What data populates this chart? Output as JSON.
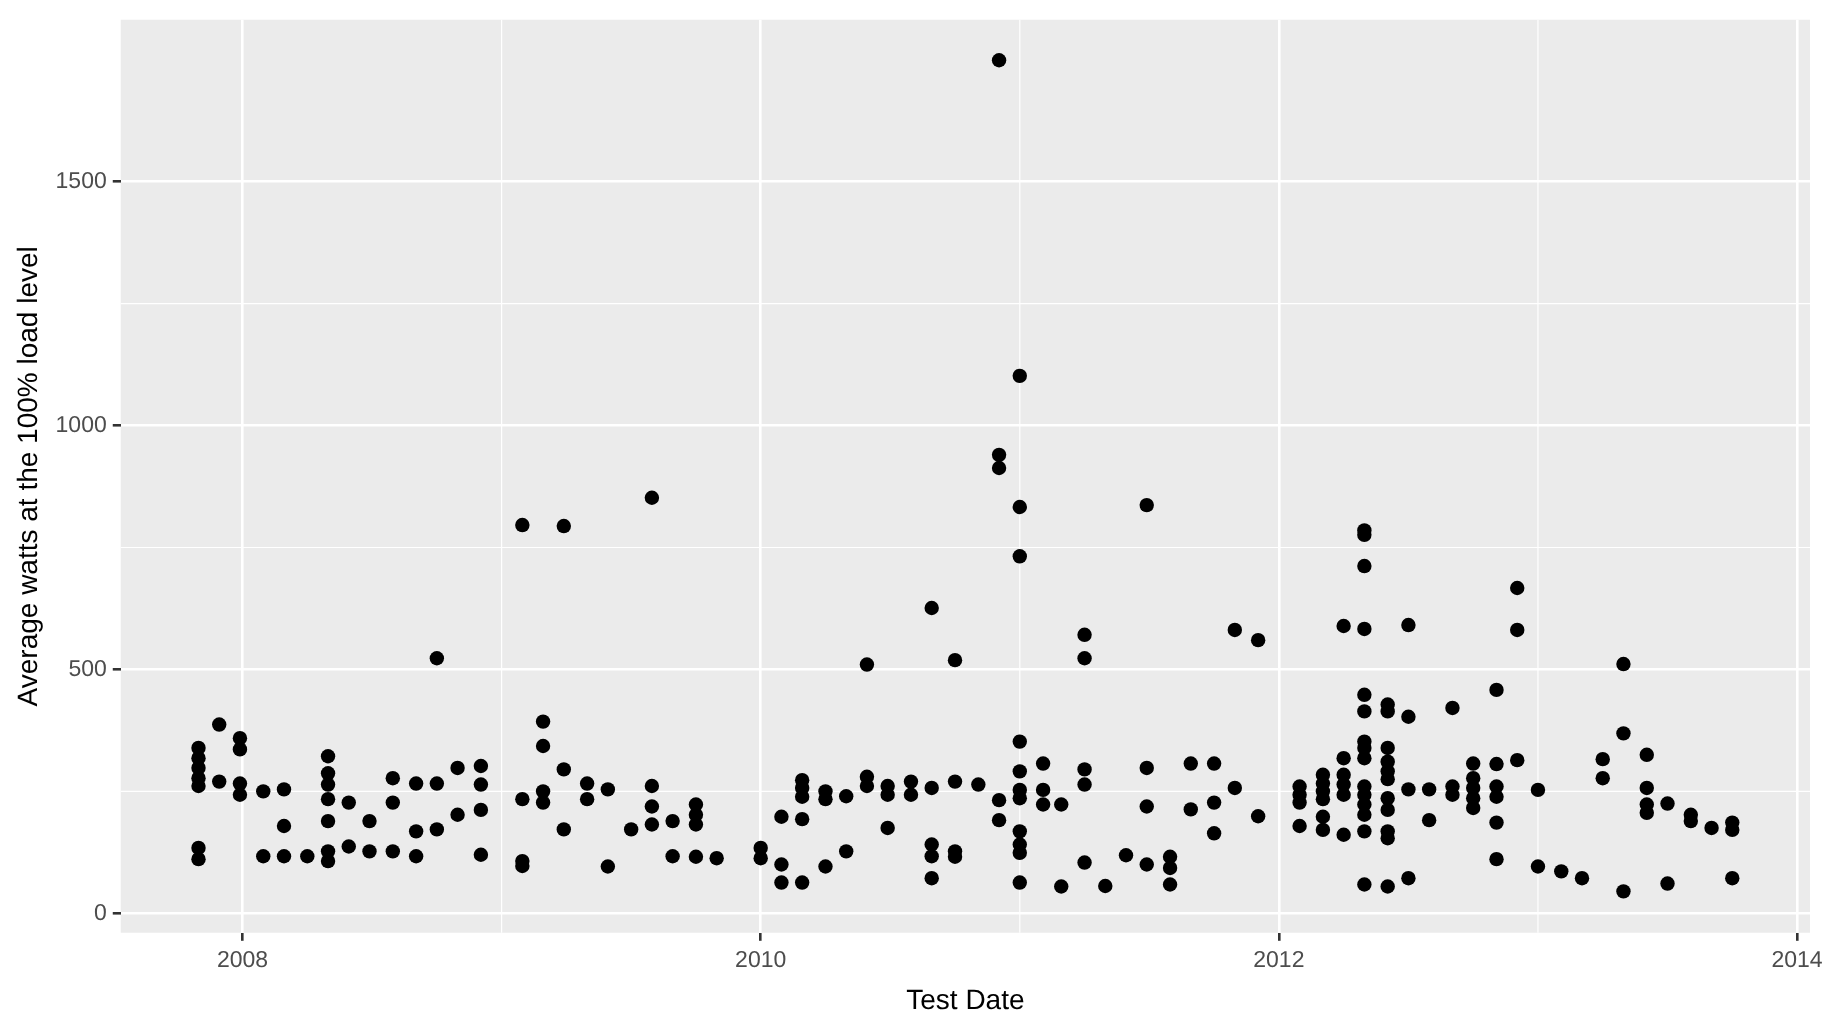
{
  "chart_data": {
    "type": "scatter",
    "xlabel": "Test Date",
    "ylabel": "Average watts at the 100% load level",
    "xlim": [
      2007.53,
      2014.05
    ],
    "ylim": [
      -40,
      1832
    ],
    "xticks": [
      2008,
      2010,
      2012,
      2014
    ],
    "yticks": [
      0,
      500,
      1000,
      1500
    ],
    "grid": true,
    "marker": "circle",
    "series": [
      {
        "color": "#000000",
        "x": [
          2007.83,
          2007.83,
          2007.83,
          2007.83,
          2007.83,
          2007.83,
          2007.83,
          2007.91,
          2007.91,
          2007.99,
          2007.99,
          2007.99,
          2007.99,
          2008.08,
          2008.08,
          2008.16,
          2008.16,
          2008.16,
          2008.25,
          2008.33,
          2008.33,
          2008.33,
          2008.33,
          2008.33,
          2008.33,
          2008.33,
          2008.41,
          2008.41,
          2008.49,
          2008.49,
          2008.58,
          2008.58,
          2008.58,
          2008.67,
          2008.67,
          2008.67,
          2008.75,
          2008.75,
          2008.75,
          2008.83,
          2008.83,
          2008.92,
          2008.92,
          2008.92,
          2008.92,
          2009.08,
          2009.08,
          2009.08,
          2009.08,
          2009.16,
          2009.16,
          2009.16,
          2009.16,
          2009.24,
          2009.24,
          2009.24,
          2009.33,
          2009.33,
          2009.41,
          2009.41,
          2009.5,
          2009.58,
          2009.58,
          2009.58,
          2009.58,
          2009.66,
          2009.66,
          2009.75,
          2009.75,
          2009.75,
          2009.75,
          2009.83,
          2010.0,
          2010.0,
          2010.08,
          2010.08,
          2010.08,
          2010.16,
          2010.16,
          2010.16,
          2010.16,
          2010.16,
          2010.25,
          2010.25,
          2010.25,
          2010.33,
          2010.33,
          2010.41,
          2010.41,
          2010.41,
          2010.49,
          2010.49,
          2010.49,
          2010.58,
          2010.58,
          2010.66,
          2010.66,
          2010.66,
          2010.66,
          2010.66,
          2010.75,
          2010.75,
          2010.75,
          2010.75,
          2010.84,
          2010.92,
          2010.92,
          2010.92,
          2010.92,
          2010.92,
          2011.0,
          2011.0,
          2011.0,
          2011.0,
          2011.0,
          2011.0,
          2011.0,
          2011.0,
          2011.0,
          2011.0,
          2011.0,
          2011.09,
          2011.09,
          2011.09,
          2011.16,
          2011.16,
          2011.25,
          2011.25,
          2011.25,
          2011.25,
          2011.25,
          2011.33,
          2011.41,
          2011.49,
          2011.49,
          2011.49,
          2011.49,
          2011.58,
          2011.58,
          2011.58,
          2011.66,
          2011.66,
          2011.75,
          2011.75,
          2011.75,
          2011.83,
          2011.83,
          2011.92,
          2011.92,
          2012.08,
          2012.08,
          2012.08,
          2012.08,
          2012.17,
          2012.17,
          2012.17,
          2012.17,
          2012.17,
          2012.17,
          2012.25,
          2012.25,
          2012.25,
          2012.25,
          2012.25,
          2012.25,
          2012.33,
          2012.33,
          2012.33,
          2012.33,
          2012.33,
          2012.33,
          2012.33,
          2012.33,
          2012.33,
          2012.33,
          2012.33,
          2012.33,
          2012.33,
          2012.33,
          2012.33,
          2012.42,
          2012.42,
          2012.42,
          2012.42,
          2012.42,
          2012.42,
          2012.42,
          2012.42,
          2012.42,
          2012.42,
          2012.42,
          2012.5,
          2012.5,
          2012.5,
          2012.5,
          2012.58,
          2012.58,
          2012.67,
          2012.67,
          2012.67,
          2012.75,
          2012.75,
          2012.75,
          2012.75,
          2012.75,
          2012.84,
          2012.84,
          2012.84,
          2012.84,
          2012.84,
          2012.84,
          2012.92,
          2012.92,
          2012.92,
          2013.0,
          2013.0,
          2013.09,
          2013.17,
          2013.25,
          2013.25,
          2013.33,
          2013.33,
          2013.33,
          2013.42,
          2013.42,
          2013.42,
          2013.42,
          2013.5,
          2013.5,
          2013.59,
          2013.59,
          2013.67,
          2013.75,
          2013.75,
          2013.75
        ],
        "values": [
          339,
          318,
          298,
          277,
          261,
          134,
          111,
          387,
          270,
          359,
          336,
          266,
          243,
          250,
          117,
          254,
          179,
          117,
          117,
          322,
          287,
          264,
          234,
          189,
          127,
          107,
          227,
          137,
          189,
          127,
          277,
          227,
          127,
          266,
          168,
          117,
          523,
          266,
          172,
          298,
          202,
          302,
          264,
          212,
          120,
          796,
          234,
          107,
          97,
          393,
          343,
          250,
          227,
          794,
          295,
          172,
          266,
          234,
          254,
          96,
          172,
          852,
          261,
          219,
          182,
          189,
          117,
          223,
          202,
          182,
          116,
          113,
          134,
          113,
          198,
          100,
          63,
          273,
          257,
          239,
          193,
          63,
          250,
          234,
          96,
          240,
          127,
          510,
          280,
          261,
          261,
          243,
          175,
          270,
          243,
          626,
          257,
          141,
          117,
          72,
          519,
          270,
          127,
          116,
          264,
          1749,
          940,
          913,
          232,
          191,
          1102,
          833,
          732,
          352,
          291,
          253,
          236,
          168,
          141,
          124,
          63,
          307,
          253,
          223,
          223,
          55,
          571,
          523,
          295,
          264,
          104,
          56,
          119,
          837,
          298,
          219,
          100,
          116,
          93,
          59,
          307,
          213,
          307,
          227,
          164,
          581,
          257,
          560,
          199,
          260,
          243,
          227,
          179,
          284,
          266,
          250,
          234,
          198,
          171,
          589,
          318,
          284,
          264,
          243,
          161,
          785,
          776,
          712,
          583,
          448,
          414,
          352,
          339,
          318,
          260,
          243,
          223,
          202,
          168,
          59,
          428,
          414,
          339,
          311,
          291,
          275,
          236,
          212,
          168,
          154,
          55,
          591,
          403,
          254,
          72,
          254,
          191,
          421,
          260,
          243,
          307,
          277,
          257,
          236,
          216,
          458,
          306,
          260,
          239,
          186,
          111,
          667,
          581,
          314,
          253,
          96,
          86,
          72,
          316,
          277,
          511,
          369,
          45,
          325,
          257,
          223,
          206,
          225,
          61,
          202,
          189,
          175,
          186,
          171,
          72
        ]
      }
    ]
  }
}
